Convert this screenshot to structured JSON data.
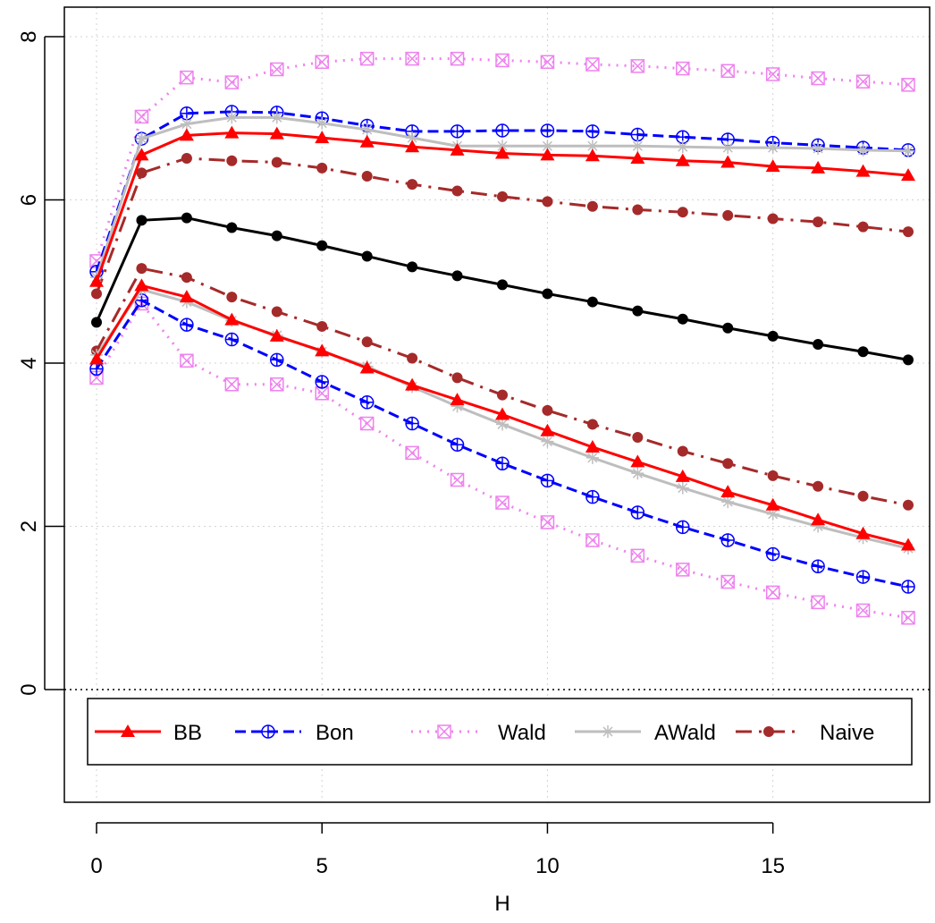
{
  "chart_data": {
    "type": "line",
    "title": "",
    "xlabel": "H",
    "ylabel": "",
    "xlim": [
      0,
      18
    ],
    "ylim": [
      -1.5,
      8.4
    ],
    "x_ticks": [
      0,
      5,
      10,
      15
    ],
    "y_ticks": [
      0,
      2,
      4,
      6,
      8
    ],
    "grid": true,
    "reference_line_y": 0,
    "legend_position": "bottom",
    "x": [
      0,
      1,
      2,
      3,
      4,
      5,
      6,
      7,
      8,
      9,
      10,
      11,
      12,
      13,
      14,
      15,
      16,
      17,
      18
    ],
    "center": {
      "values": [
        4.5,
        5.75,
        5.78,
        5.66,
        5.56,
        5.44,
        5.31,
        5.18,
        5.07,
        4.96,
        4.85,
        4.75,
        4.64,
        4.54,
        4.43,
        4.33,
        4.23,
        4.14,
        4.04
      ],
      "color": "#000000"
    },
    "series": [
      {
        "name": "BB",
        "color": "#ff0000",
        "dash": "solid",
        "marker": "triangle",
        "upper": [
          5.0,
          6.55,
          6.79,
          6.82,
          6.81,
          6.76,
          6.71,
          6.65,
          6.61,
          6.57,
          6.55,
          6.54,
          6.51,
          6.48,
          6.46,
          6.41,
          6.39,
          6.35,
          6.3
        ],
        "lower": [
          4.05,
          4.95,
          4.81,
          4.53,
          4.33,
          4.15,
          3.94,
          3.73,
          3.55,
          3.37,
          3.17,
          2.97,
          2.79,
          2.61,
          2.42,
          2.26,
          2.08,
          1.91,
          1.77
        ]
      },
      {
        "name": "Bon",
        "color": "#0000ff",
        "dash": "dashed",
        "marker": "circle-plus",
        "upper": [
          5.12,
          6.75,
          7.06,
          7.08,
          7.07,
          7.0,
          6.91,
          6.84,
          6.84,
          6.85,
          6.85,
          6.84,
          6.8,
          6.77,
          6.74,
          6.7,
          6.67,
          6.64,
          6.61
        ],
        "lower": [
          3.93,
          4.77,
          4.47,
          4.29,
          4.04,
          3.77,
          3.52,
          3.26,
          3.0,
          2.77,
          2.56,
          2.36,
          2.17,
          1.99,
          1.83,
          1.66,
          1.51,
          1.38,
          1.26
        ]
      },
      {
        "name": "Wald",
        "color": "#ee82ee",
        "dash": "dotted",
        "marker": "square-x",
        "upper": [
          5.25,
          7.02,
          7.5,
          7.44,
          7.6,
          7.69,
          7.73,
          7.73,
          7.73,
          7.71,
          7.69,
          7.66,
          7.64,
          7.61,
          7.58,
          7.54,
          7.49,
          7.45,
          7.41
        ],
        "lower": [
          3.82,
          4.73,
          4.03,
          3.74,
          3.74,
          3.63,
          3.26,
          2.9,
          2.57,
          2.29,
          2.05,
          1.83,
          1.64,
          1.47,
          1.32,
          1.19,
          1.07,
          0.97,
          0.88
        ]
      },
      {
        "name": "AWald",
        "color": "#bebebe",
        "dash": "solid",
        "marker": "asterisk",
        "upper": [
          5.05,
          6.75,
          6.93,
          7.01,
          7.01,
          6.94,
          6.86,
          6.76,
          6.66,
          6.66,
          6.66,
          6.66,
          6.66,
          6.65,
          6.64,
          6.64,
          6.63,
          6.61,
          6.6
        ],
        "lower": [
          4.1,
          4.9,
          4.75,
          4.52,
          4.34,
          4.14,
          3.96,
          3.71,
          3.47,
          3.25,
          3.04,
          2.84,
          2.65,
          2.47,
          2.3,
          2.15,
          2.0,
          1.86,
          1.73
        ]
      },
      {
        "name": "Naive",
        "color": "#a52a2a",
        "dash": "dashdot",
        "marker": "dot",
        "upper": [
          4.85,
          6.33,
          6.51,
          6.48,
          6.46,
          6.39,
          6.29,
          6.19,
          6.11,
          6.04,
          5.98,
          5.92,
          5.88,
          5.85,
          5.81,
          5.77,
          5.73,
          5.67,
          5.61
        ],
        "lower": [
          4.15,
          5.16,
          5.05,
          4.81,
          4.63,
          4.45,
          4.26,
          4.06,
          3.82,
          3.61,
          3.42,
          3.25,
          3.09,
          2.92,
          2.77,
          2.62,
          2.49,
          2.37,
          2.26
        ]
      }
    ]
  }
}
